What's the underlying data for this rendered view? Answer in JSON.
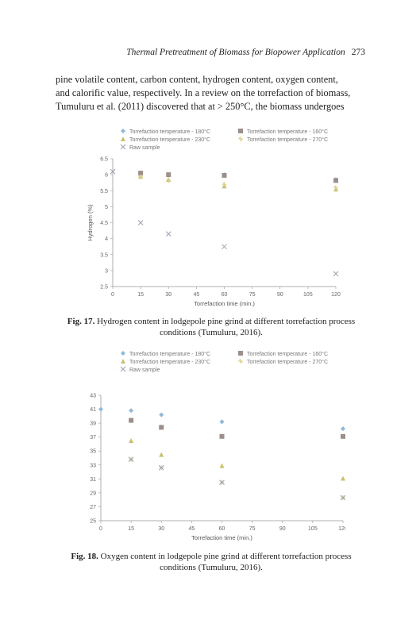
{
  "header": {
    "running_title": "Thermal Pretreatment of Biomass for Biopower Application",
    "page_number": "273"
  },
  "paragraph": {
    "lines": [
      "pine volatile content, carbon content, hydrogen content, oxygen content,",
      "and calorific value, respectively. In a review on the torrefaction of biomass,",
      "Tumuluru et al. (2011) discovered that at > 250°C, the biomass undergoes"
    ]
  },
  "figures": [
    {
      "label": "Fig. 17.",
      "caption": "Hydrogen content in lodgepole pine grind at different torrefaction process conditions (Tumuluru, 2016).",
      "legend": [
        "Torrefaction temperature - 180°C",
        "Torrefaction temperature - 230°C",
        "Torrefaction temperature - 160°C",
        "Torrefaction temperature - 270°C",
        "Raw sample"
      ]
    },
    {
      "label": "Fig. 18.",
      "caption": "Oxygen content in lodgepole pine grind at different torrefaction process conditions (Tumuluru, 2016).",
      "legend": [
        "Torrefaction temperature - 180°C",
        "Torrefaction temperature - 230°C",
        "Torrefaction temperature - 160°C",
        "Torrefaction temperature - 270°C",
        "Raw sample"
      ]
    }
  ],
  "chart_data": [
    {
      "type": "scatter",
      "xlabel": "Torrefaction time (min.)",
      "ylabel": "Hydrogen (%)",
      "xlim": [
        0,
        120
      ],
      "ylim": [
        2.5,
        6.5
      ],
      "xticks": [
        0,
        15,
        30,
        45,
        60,
        75,
        90,
        105,
        120
      ],
      "yticks": [
        2.5,
        3,
        3.5,
        4,
        4.5,
        5,
        5.5,
        6,
        6.5
      ],
      "series": [
        {
          "name": "Torrefaction temperature - 180°C",
          "color": "#8fb8d8",
          "marker": "diamond",
          "x": [
            15,
            30,
            60,
            120
          ],
          "y": [
            6.05,
            6.0,
            6.0,
            5.85
          ]
        },
        {
          "name": "Torrefaction temperature - 160°C",
          "color": "#9c8f8a",
          "marker": "square",
          "x": [
            15,
            30,
            60,
            120
          ],
          "y": [
            6.05,
            6.0,
            5.98,
            5.82
          ]
        },
        {
          "name": "Torrefaction temperature - 230°C",
          "color": "#c8c070",
          "marker": "triangle",
          "x": [
            15,
            30,
            60,
            120
          ],
          "y": [
            5.95,
            5.85,
            5.65,
            5.55
          ]
        },
        {
          "name": "Torrefaction temperature - 270°C",
          "color": "#d8d08a",
          "marker": "star",
          "x": [
            15,
            30,
            60,
            120
          ],
          "y": [
            5.93,
            5.82,
            5.7,
            5.6
          ]
        },
        {
          "name": "Raw sample",
          "color": "#9aa0b0",
          "marker": "x",
          "x": [
            0,
            15,
            30,
            60,
            120
          ],
          "y": [
            6.1,
            4.5,
            4.15,
            3.75,
            2.9
          ]
        }
      ]
    },
    {
      "type": "scatter",
      "xlabel": "Torrefaction time (min.)",
      "ylabel": "Oxygen (%)",
      "xlim": [
        0,
        120
      ],
      "ylim": [
        25,
        43
      ],
      "xticks": [
        0,
        15,
        30,
        45,
        60,
        75,
        90,
        105,
        120
      ],
      "yticks": [
        25,
        27,
        29,
        31,
        33,
        35,
        37,
        39,
        41,
        43
      ],
      "series": [
        {
          "name": "Torrefaction temperature - 180°C",
          "color": "#8fb8d8",
          "marker": "diamond",
          "x": [
            0,
            15,
            30,
            60,
            120
          ],
          "y": [
            41,
            40.8,
            40.2,
            39.2,
            38.2
          ]
        },
        {
          "name": "Torrefaction temperature - 160°C",
          "color": "#9c8f8a",
          "marker": "square",
          "x": [
            15,
            30,
            60,
            120
          ],
          "y": [
            39.4,
            38.4,
            37.1,
            37.1
          ]
        },
        {
          "name": "Torrefaction temperature - 230°C",
          "color": "#c8c070",
          "marker": "triangle",
          "x": [
            15,
            30,
            60,
            120
          ],
          "y": [
            36.5,
            34.5,
            32.9,
            31.1
          ]
        },
        {
          "name": "Torrefaction temperature - 270°C",
          "color": "#d8d08a",
          "marker": "star",
          "x": [
            15,
            30,
            60,
            120
          ],
          "y": [
            33.8,
            32.6,
            30.5,
            28.3
          ]
        },
        {
          "name": "Raw sample",
          "color": "#9aa0b0",
          "marker": "x",
          "x": [
            15,
            30,
            60,
            120
          ],
          "y": [
            33.8,
            32.6,
            30.5,
            28.3
          ]
        }
      ]
    }
  ]
}
